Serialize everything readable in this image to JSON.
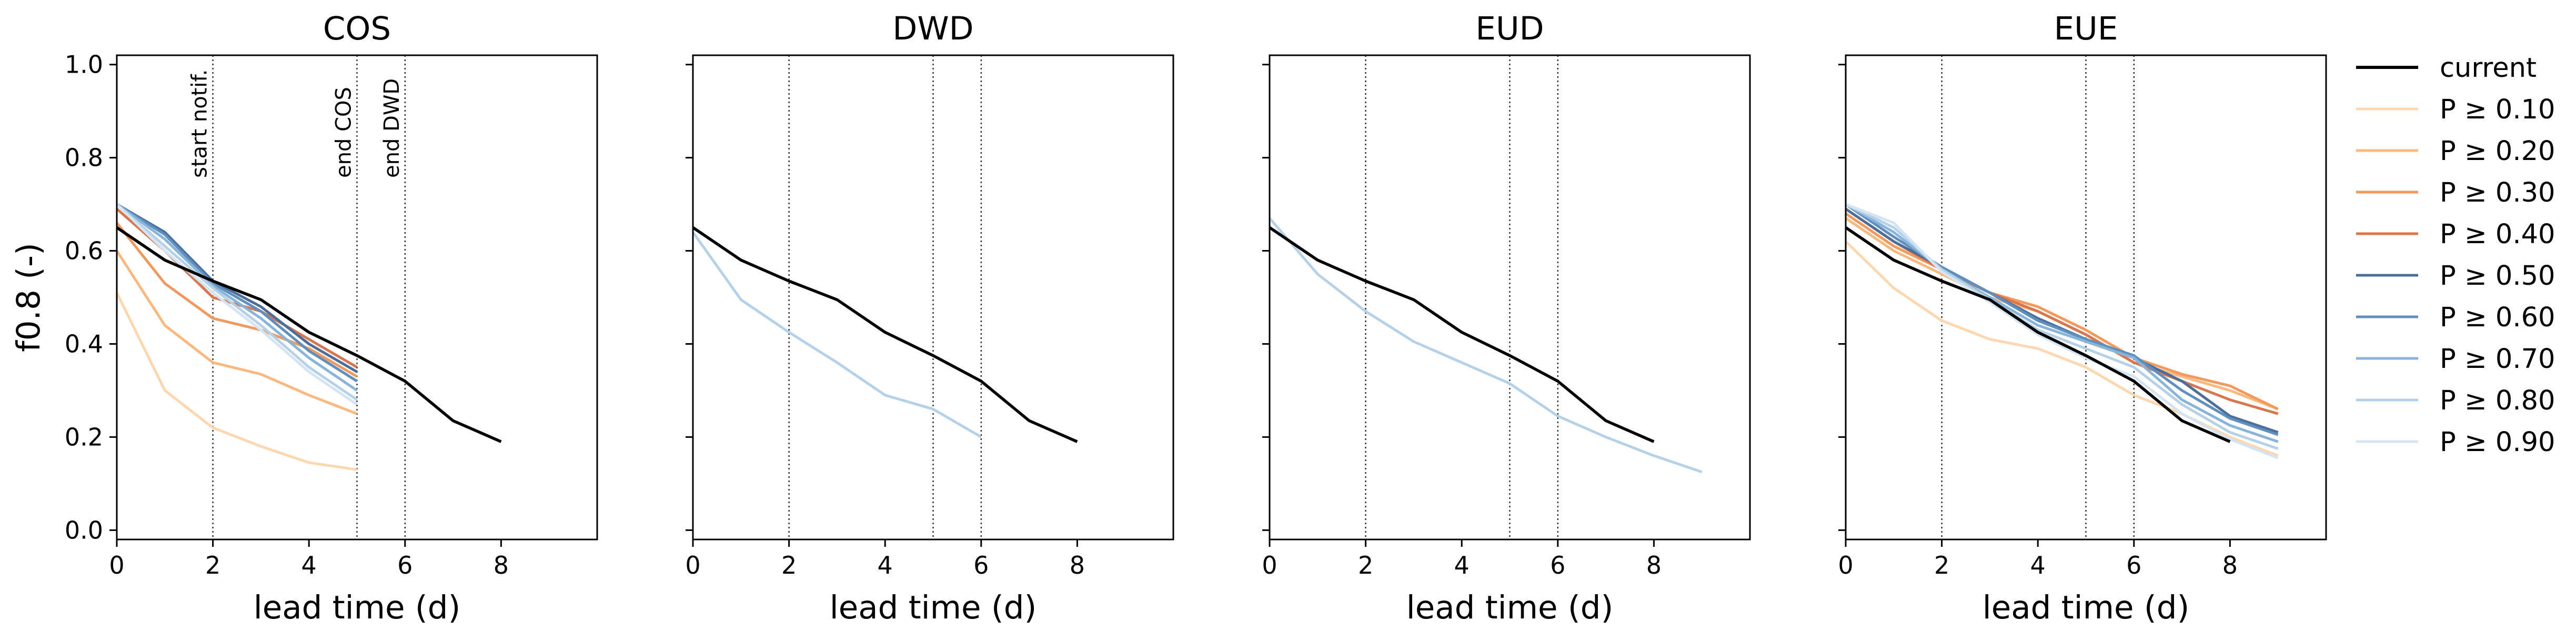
{
  "chart_data": {
    "type": "line",
    "ylabel": "f0.8 (-)",
    "xlabel": "lead time (d)",
    "xlim": [
      0,
      10
    ],
    "ylim": [
      -0.02,
      1.02
    ],
    "xticks": [
      "0",
      "2",
      "4",
      "6",
      "8"
    ],
    "yticks": [
      "0.0",
      "0.2",
      "0.4",
      "0.6",
      "0.8",
      "1.0"
    ],
    "grid": false,
    "legend_position": "right, outside",
    "vlines": [
      {
        "x": 2,
        "label": "start notif."
      },
      {
        "x": 5,
        "label": "end COS"
      },
      {
        "x": 6,
        "label": "end DWD"
      }
    ],
    "legend": [
      {
        "name": "current",
        "color": "#000000"
      },
      {
        "name": "P ≥ 0.10",
        "color": "#fdd7b0"
      },
      {
        "name": "P ≥ 0.20",
        "color": "#fcb87e"
      },
      {
        "name": "P ≥ 0.30",
        "color": "#f29a5e"
      },
      {
        "name": "P ≥ 0.40",
        "color": "#d8774e"
      },
      {
        "name": "P ≥ 0.50",
        "color": "#4d6e98"
      },
      {
        "name": "P ≥ 0.60",
        "color": "#5e8fbf"
      },
      {
        "name": "P ≥ 0.70",
        "color": "#87b4d8"
      },
      {
        "name": "P ≥ 0.80",
        "color": "#b4d1e8"
      },
      {
        "name": "P ≥ 0.90",
        "color": "#d5e4f2"
      }
    ],
    "current": {
      "x": [
        0,
        1,
        2,
        3,
        4,
        5,
        6,
        7,
        8
      ],
      "y": [
        0.65,
        0.58,
        0.535,
        0.495,
        0.425,
        0.375,
        0.32,
        0.235,
        0.19
      ]
    },
    "panels": [
      {
        "title": "COS",
        "series": [
          {
            "name": "P ≥ 0.10",
            "x": [
              0,
              1,
              2,
              3,
              4,
              5
            ],
            "y": [
              0.51,
              0.3,
              0.22,
              0.18,
              0.145,
              0.13
            ]
          },
          {
            "name": "P ≥ 0.20",
            "x": [
              0,
              1,
              2,
              3,
              4,
              5
            ],
            "y": [
              0.6,
              0.44,
              0.36,
              0.335,
              0.29,
              0.25
            ]
          },
          {
            "name": "P ≥ 0.30",
            "x": [
              0,
              1,
              2,
              3,
              4,
              5
            ],
            "y": [
              0.66,
              0.53,
              0.455,
              0.43,
              0.39,
              0.33
            ]
          },
          {
            "name": "P ≥ 0.40",
            "x": [
              0,
              1,
              2,
              3,
              4,
              5
            ],
            "y": [
              0.69,
              0.6,
              0.5,
              0.47,
              0.41,
              0.35
            ]
          },
          {
            "name": "P ≥ 0.50",
            "x": [
              0,
              1,
              2,
              3,
              4,
              5
            ],
            "y": [
              0.7,
              0.64,
              0.535,
              0.48,
              0.4,
              0.34
            ]
          },
          {
            "name": "P ≥ 0.60",
            "x": [
              0,
              1,
              2,
              3,
              4,
              5
            ],
            "y": [
              0.7,
              0.635,
              0.53,
              0.47,
              0.385,
              0.32
            ]
          },
          {
            "name": "P ≥ 0.70",
            "x": [
              0,
              1,
              2,
              3,
              4,
              5
            ],
            "y": [
              0.7,
              0.625,
              0.525,
              0.455,
              0.37,
              0.3
            ]
          },
          {
            "name": "P ≥ 0.80",
            "x": [
              0,
              1,
              2,
              3,
              4,
              5
            ],
            "y": [
              0.7,
              0.61,
              0.52,
              0.44,
              0.35,
              0.28
            ]
          },
          {
            "name": "P ≥ 0.90",
            "x": [
              0,
              1,
              2,
              3,
              4,
              5
            ],
            "y": [
              0.7,
              0.6,
              0.51,
              0.43,
              0.34,
              0.27
            ]
          }
        ]
      },
      {
        "title": "DWD",
        "series": [
          {
            "name": "P ≥ 0.80",
            "x": [
              0,
              1,
              2,
              3,
              4,
              5,
              6
            ],
            "y": [
              0.64,
              0.495,
              0.425,
              0.36,
              0.29,
              0.26,
              0.2
            ]
          }
        ]
      },
      {
        "title": "EUD",
        "series": [
          {
            "name": "P ≥ 0.80",
            "x": [
              0,
              1,
              2,
              3,
              4,
              5,
              6,
              7,
              8,
              9
            ],
            "y": [
              0.67,
              0.55,
              0.47,
              0.405,
              0.36,
              0.315,
              0.245,
              0.2,
              0.16,
              0.125
            ]
          }
        ]
      },
      {
        "title": "EUE",
        "series": [
          {
            "name": "P ≥ 0.10",
            "x": [
              0,
              1,
              2,
              3,
              4,
              5,
              6,
              7,
              8,
              9
            ],
            "y": [
              0.62,
              0.52,
              0.45,
              0.41,
              0.39,
              0.35,
              0.29,
              0.25,
              0.2,
              0.16
            ]
          },
          {
            "name": "P ≥ 0.20",
            "x": [
              0,
              1,
              2,
              3,
              4,
              5,
              6,
              7,
              8,
              9
            ],
            "y": [
              0.67,
              0.6,
              0.55,
              0.5,
              0.47,
              0.42,
              0.36,
              0.33,
              0.3,
              0.26
            ]
          },
          {
            "name": "P ≥ 0.30",
            "x": [
              0,
              1,
              2,
              3,
              4,
              5,
              6,
              7,
              8,
              9
            ],
            "y": [
              0.68,
              0.61,
              0.56,
              0.51,
              0.48,
              0.43,
              0.37,
              0.335,
              0.31,
              0.26
            ]
          },
          {
            "name": "P ≥ 0.40",
            "x": [
              0,
              1,
              2,
              3,
              4,
              5,
              6,
              7,
              8,
              9
            ],
            "y": [
              0.69,
              0.62,
              0.56,
              0.51,
              0.47,
              0.42,
              0.36,
              0.32,
              0.28,
              0.25
            ]
          },
          {
            "name": "P ≥ 0.50",
            "x": [
              0,
              1,
              2,
              3,
              4,
              5,
              6,
              7,
              8,
              9
            ],
            "y": [
              0.69,
              0.62,
              0.565,
              0.51,
              0.455,
              0.41,
              0.37,
              0.32,
              0.245,
              0.21
            ]
          },
          {
            "name": "P ≥ 0.60",
            "x": [
              0,
              1,
              2,
              3,
              4,
              5,
              6,
              7,
              8,
              9
            ],
            "y": [
              0.7,
              0.63,
              0.565,
              0.51,
              0.45,
              0.41,
              0.375,
              0.3,
              0.24,
              0.205
            ]
          },
          {
            "name": "P ≥ 0.70",
            "x": [
              0,
              1,
              2,
              3,
              4,
              5,
              6,
              7,
              8,
              9
            ],
            "y": [
              0.7,
              0.64,
              0.56,
              0.5,
              0.44,
              0.405,
              0.37,
              0.28,
              0.225,
              0.19
            ]
          },
          {
            "name": "P ≥ 0.80",
            "x": [
              0,
              1,
              2,
              3,
              4,
              5,
              6,
              7,
              8,
              9
            ],
            "y": [
              0.7,
              0.65,
              0.56,
              0.495,
              0.43,
              0.39,
              0.35,
              0.27,
              0.21,
              0.175
            ]
          },
          {
            "name": "P ≥ 0.90",
            "x": [
              0,
              1,
              2,
              3,
              4,
              5,
              6,
              7,
              8,
              9
            ],
            "y": [
              0.7,
              0.66,
              0.555,
              0.49,
              0.42,
              0.37,
              0.33,
              0.25,
              0.195,
              0.155
            ]
          }
        ]
      }
    ]
  }
}
